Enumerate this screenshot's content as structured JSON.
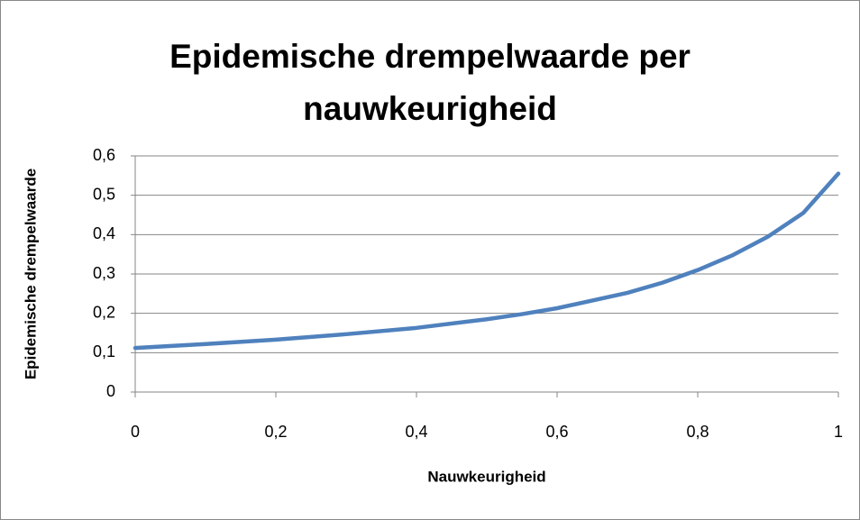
{
  "chart_data": {
    "type": "line",
    "title": "Epidemische drempelwaarde per nauwkeurigheid",
    "x_label": "Nauwkeurigheid",
    "y_label": "Epidemische drempelwaarde",
    "x": [
      0,
      0.1,
      0.2,
      0.3,
      0.4,
      0.5,
      0.55,
      0.6,
      0.7,
      0.75,
      0.8,
      0.85,
      0.9,
      0.95,
      1
    ],
    "series": [
      {
        "name": "Epidemische drempelwaarde",
        "color": "#4f81bd",
        "values": [
          0.112,
          0.122,
          0.133,
          0.147,
          0.163,
          0.185,
          0.198,
          0.213,
          0.252,
          0.278,
          0.31,
          0.348,
          0.395,
          0.455,
          0.555
        ]
      }
    ],
    "xlim": [
      0,
      1
    ],
    "xticks": [
      0,
      {
        "value": 0.2,
        "label": "0,2"
      },
      {
        "value": 0.4,
        "label": "0,4"
      },
      {
        "value": 0.6,
        "label": "0,6"
      },
      {
        "value": 0.8,
        "label": "0,8"
      },
      1
    ],
    "ylim": [
      0,
      0.6
    ],
    "yticks": [
      0,
      {
        "value": 0.1,
        "label": "0,1"
      },
      {
        "value": 0.2,
        "label": "0,2"
      },
      {
        "value": 0.3,
        "label": "0,3"
      },
      {
        "value": 0.4,
        "label": "0,4"
      },
      {
        "value": 0.5,
        "label": "0,5"
      },
      {
        "value": 0.6,
        "label": "0,6"
      }
    ],
    "grid": true
  }
}
